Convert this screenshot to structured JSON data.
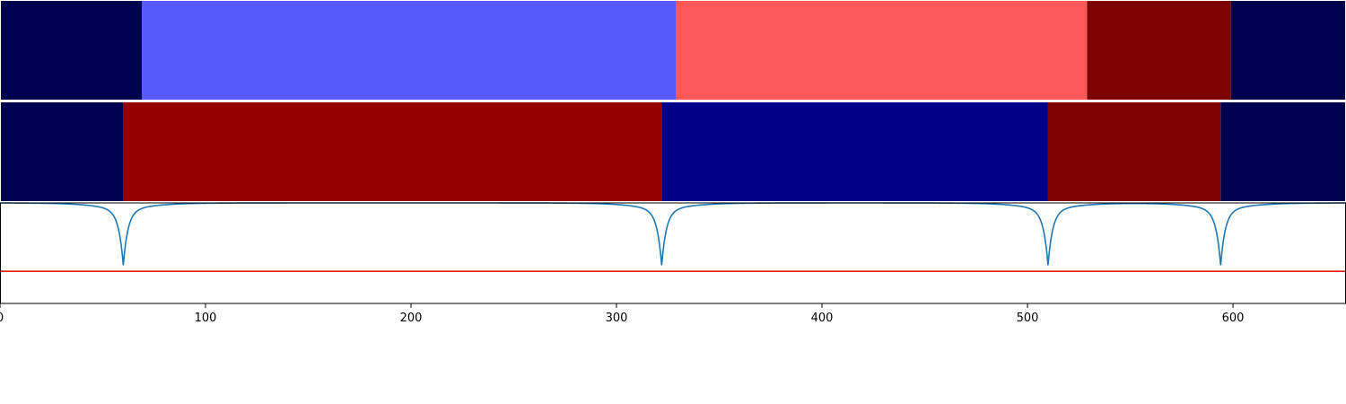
{
  "chart_data": [
    {
      "type": "heatmap",
      "segments": [
        {
          "x_start": 0,
          "x_end": 69,
          "color": "#000050"
        },
        {
          "x_start": 69,
          "x_end": 329,
          "color": "#5858ff"
        },
        {
          "x_start": 329,
          "x_end": 529,
          "color": "#ff5858"
        },
        {
          "x_start": 529,
          "x_end": 599,
          "color": "#7f0000"
        },
        {
          "x_start": 599,
          "x_end": 655,
          "color": "#000050"
        }
      ]
    },
    {
      "type": "heatmap",
      "segments": [
        {
          "x_start": 0,
          "x_end": 60,
          "color": "#000050"
        },
        {
          "x_start": 60,
          "x_end": 322,
          "color": "#920000"
        },
        {
          "x_start": 322,
          "x_end": 510,
          "color": "#000088"
        },
        {
          "x_start": 510,
          "x_end": 594,
          "color": "#7f0000"
        },
        {
          "x_start": 594,
          "x_end": 655,
          "color": "#000050"
        }
      ]
    },
    {
      "type": "line",
      "xlim": [
        0,
        655
      ],
      "ylim": [
        0,
        1
      ],
      "threshold": 0.32,
      "threshold_color": "#e41a1c",
      "series_color": "#1f77b4",
      "dips": [
        60,
        322,
        510,
        594
      ],
      "dip_depth": 0.52,
      "xticks": [
        0,
        100,
        200,
        300,
        400,
        500,
        600
      ]
    }
  ]
}
